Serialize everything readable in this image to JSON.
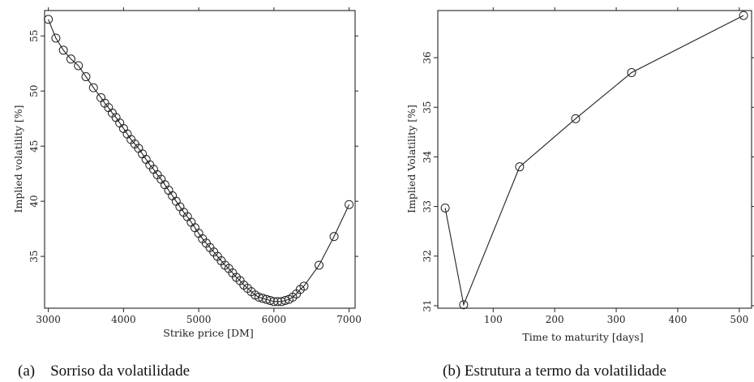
{
  "chart_data": [
    {
      "type": "line",
      "xlabel": "Strike price [DM]",
      "ylabel": "Implied volatility [%]",
      "xlim": [
        2950,
        7080
      ],
      "ylim": [
        30.3,
        57.3
      ],
      "xticks": [
        "3000",
        "4000",
        "5000",
        "6000",
        "7000"
      ],
      "yticks": [
        "35",
        "40",
        "45",
        "50",
        "55"
      ],
      "caption": "(a)    Sorriso da volatilidade",
      "markers": "circle",
      "series": [
        {
          "x": [
            3000,
            3100,
            3200,
            3300,
            3400,
            3500,
            3600,
            3700,
            3750,
            3800,
            3850,
            3900,
            3950,
            4000,
            4050,
            4100,
            4150,
            4200,
            4250,
            4300,
            4350,
            4400,
            4450,
            4500,
            4550,
            4600,
            4650,
            4700,
            4750,
            4800,
            4850,
            4900,
            4950,
            5000,
            5050,
            5100,
            5150,
            5200,
            5250,
            5300,
            5350,
            5400,
            5450,
            5500,
            5550,
            5600,
            5650,
            5700,
            5750,
            5800,
            5850,
            5900,
            5950,
            6000,
            6050,
            6100,
            6150,
            6200,
            6250,
            6300,
            6350,
            6400,
            6600,
            6800,
            7000
          ],
          "y": [
            56.5,
            54.8,
            53.7,
            52.9,
            52.3,
            51.3,
            50.3,
            49.4,
            48.9,
            48.5,
            48.0,
            47.6,
            47.1,
            46.6,
            46.1,
            45.6,
            45.2,
            44.8,
            44.3,
            43.8,
            43.3,
            42.9,
            42.4,
            42.0,
            41.5,
            41.0,
            40.5,
            40.0,
            39.5,
            39.0,
            38.6,
            38.1,
            37.6,
            37.1,
            36.6,
            36.2,
            35.8,
            35.4,
            35.0,
            34.6,
            34.2,
            33.9,
            33.5,
            33.1,
            32.8,
            32.4,
            32.1,
            31.8,
            31.5,
            31.3,
            31.2,
            31.1,
            31.0,
            30.9,
            30.9,
            30.9,
            31.0,
            31.1,
            31.3,
            31.6,
            32.0,
            32.3,
            34.2,
            36.8,
            39.7
          ]
        }
      ]
    },
    {
      "type": "line",
      "xlabel": "Time to maturity [days]",
      "ylabel": "Implied Volatility [%]",
      "xlim": [
        10,
        520
      ],
      "ylim": [
        30.95,
        36.95
      ],
      "xticks": [
        "100",
        "200",
        "300",
        "400",
        "500"
      ],
      "yticks": [
        "31",
        "32",
        "33",
        "34",
        "35",
        "36"
      ],
      "caption": "(b) Estrutura a termo da volatilidade",
      "markers": "circle",
      "series": [
        {
          "x": [
            22,
            52,
            143,
            234,
            325,
            507
          ],
          "y": [
            32.97,
            31.02,
            33.8,
            34.77,
            35.7,
            36.85
          ]
        }
      ]
    }
  ]
}
